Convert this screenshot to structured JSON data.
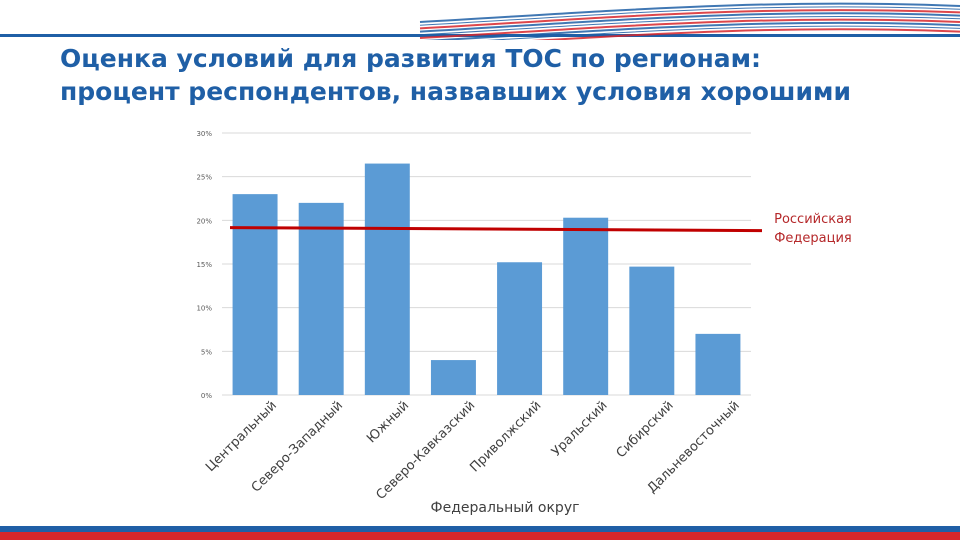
{
  "header": {
    "title_line1": "Оценка условий для развития ТОС по регионам:",
    "title_line2": "процент респондентов, назвавших условия хорошими"
  },
  "colors": {
    "bar": "#5b9bd5",
    "reference_line": "#c00000",
    "title": "#1f5fa6",
    "band_blue": "#1f5fa6",
    "band_red": "#d7262b"
  },
  "chart_data": {
    "type": "bar",
    "title": "",
    "xlabel": "Федеральный округ",
    "ylabel": "",
    "categories": [
      "Центральный",
      "Северо-Западный",
      "Южный",
      "Северо-Кавказский",
      "Приволжский",
      "Уральский",
      "Сибирский",
      "Дальневосточный"
    ],
    "values": [
      0.23,
      0.22,
      0.265,
      0.04,
      0.152,
      0.203,
      0.147,
      0.07
    ],
    "ylim": [
      0,
      0.3
    ],
    "yticks": [
      "0%",
      "5%",
      "10%",
      "15%",
      "20%",
      "25%",
      "30%"
    ],
    "grid": true,
    "reference_line": {
      "value": 0.19,
      "label_line1": "Российская",
      "label_line2": "Федерация"
    }
  }
}
